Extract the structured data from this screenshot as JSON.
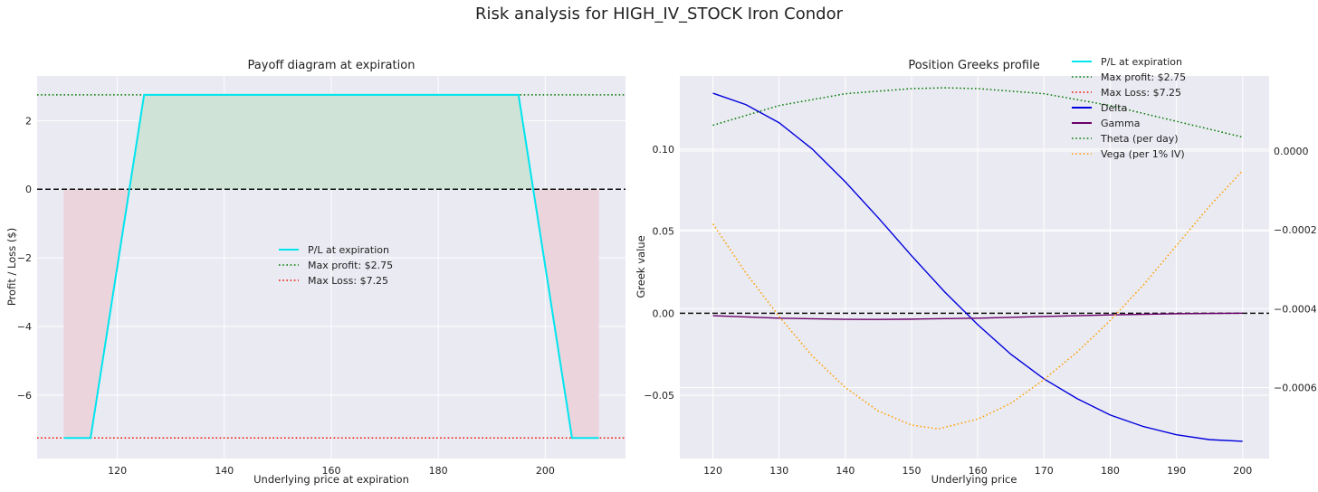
{
  "suptitle": "Risk analysis for HIGH_IV_STOCK Iron Condor",
  "colors": {
    "pl": "#00e5ee",
    "max_profit": "#007a00",
    "max_loss": "#ee1100",
    "delta": "#0000dd",
    "gamma": "#6a006a",
    "theta": "#007a00",
    "vega": "#ffa000",
    "zero_line": "#111111",
    "panel_bg": "#eaeaf2",
    "profit_fill": "#cfe3d6",
    "loss_fill": "#ecd4dc"
  },
  "chart_data": [
    {
      "type": "line",
      "title": "Payoff diagram at expiration",
      "xlabel": "Underlying price at expiration",
      "ylabel": "Profit / Loss ($)",
      "xlim": [
        105,
        215
      ],
      "ylim": [
        -7.85,
        3.3
      ],
      "xticks": [
        120,
        140,
        160,
        180,
        200
      ],
      "yticks": [
        2,
        0,
        -2,
        -4,
        -6
      ],
      "ytick_labels": [
        "2",
        "0",
        "−2",
        "−4",
        "−6"
      ],
      "grid": true,
      "legend_position": "center",
      "series": [
        {
          "name": "P/L at expiration",
          "style": "solid",
          "x": [
            110,
            115,
            125,
            195,
            205,
            210
          ],
          "y": [
            -7.25,
            -7.25,
            2.75,
            2.75,
            -7.25,
            -7.25
          ]
        },
        {
          "name": "Max profit: $2.75",
          "style": "dotted",
          "y_constant": 2.75
        },
        {
          "name": "Max Loss: $7.25",
          "style": "dotted",
          "y_constant": -7.25
        }
      ],
      "zero_line": 0,
      "shaded_regions": {
        "profit_where": "P/L > 0",
        "loss_where": "P/L < 0",
        "x_range": [
          110,
          210
        ]
      }
    },
    {
      "type": "line",
      "title": "Position Greeks profile",
      "xlabel": "Underlying price",
      "ylabel": "Greek value",
      "xlim": [
        115,
        204
      ],
      "ylim": [
        -0.0885,
        0.1445
      ],
      "y2lim": [
        -0.00078,
        0.00019
      ],
      "xticks": [
        120,
        130,
        140,
        150,
        160,
        170,
        180,
        190,
        200
      ],
      "yticks": [
        0.1,
        0.05,
        0,
        -0.05
      ],
      "ytick_labels": [
        "0.10",
        "0.05",
        "0.00",
        "−0.05"
      ],
      "y2ticks": [
        0,
        -0.0002,
        -0.0004,
        -0.0006
      ],
      "y2tick_labels": [
        "0.0000",
        "−0.0002",
        "−0.0004",
        "−0.0006"
      ],
      "grid": true,
      "legend_position": "upper right",
      "legend_entries": [
        "P/L at expiration",
        "Max profit: $2.75",
        "Max Loss: $7.25",
        "Delta",
        "Gamma",
        "Theta (per day)",
        "Vega (per 1% IV)"
      ],
      "series": [
        {
          "name": "Delta",
          "axis": "left",
          "style": "solid",
          "x": [
            120,
            125,
            130,
            135,
            140,
            145,
            150,
            155,
            160,
            165,
            170,
            175,
            180,
            185,
            190,
            195,
            200
          ],
          "y": [
            0.134,
            0.127,
            0.116,
            0.1,
            0.08,
            0.058,
            0.035,
            0.013,
            -0.007,
            -0.025,
            -0.04,
            -0.052,
            -0.062,
            -0.069,
            -0.074,
            -0.077,
            -0.078
          ]
        },
        {
          "name": "Gamma",
          "axis": "left",
          "style": "solid",
          "x": [
            120,
            130,
            140,
            145,
            150,
            160,
            170,
            180,
            190,
            200
          ],
          "y": [
            -0.0015,
            -0.003,
            -0.0037,
            -0.0038,
            -0.0036,
            -0.003,
            -0.002,
            -0.001,
            -0.0003,
            0.0
          ]
        },
        {
          "name": "Theta (per day)",
          "axis": "right",
          "style": "dotted",
          "x": [
            120,
            130,
            140,
            150,
            155,
            160,
            170,
            180,
            190,
            200
          ],
          "y": [
            6.5e-05,
            0.000115,
            0.000145,
            0.000158,
            0.00016,
            0.000158,
            0.000145,
            0.000115,
            7.5e-05,
            3.5e-05
          ]
        },
        {
          "name": "Vega (per 1% IV)",
          "axis": "right",
          "style": "dotted",
          "x": [
            120,
            125,
            130,
            135,
            140,
            145,
            150,
            154,
            160,
            165,
            170,
            175,
            180,
            185,
            190,
            195,
            200
          ],
          "y": [
            -0.000185,
            -0.00031,
            -0.00042,
            -0.00052,
            -0.0006,
            -0.00066,
            -0.000695,
            -0.000705,
            -0.00068,
            -0.00064,
            -0.00058,
            -0.00051,
            -0.00043,
            -0.00034,
            -0.00024,
            -0.00014,
            -5e-05
          ]
        }
      ],
      "zero_line": 0
    }
  ]
}
